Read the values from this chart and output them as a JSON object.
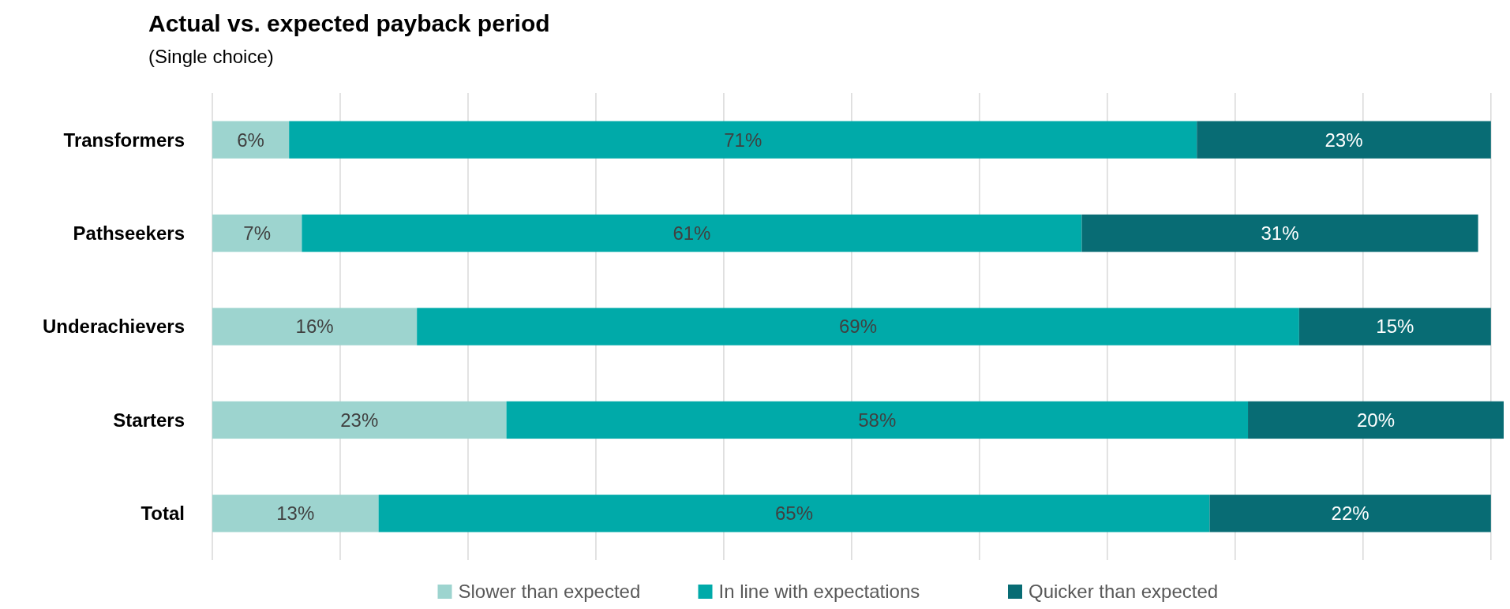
{
  "chart_data": {
    "type": "bar",
    "orientation": "horizontal",
    "stacked": true,
    "title": "Actual vs. expected payback period",
    "subtitle": "(Single choice)",
    "categories": [
      "Transformers",
      "Pathseekers",
      "Underachievers",
      "Starters",
      "Total"
    ],
    "series": [
      {
        "name": "Slower than expected",
        "color": "#9dd4cf",
        "values": [
          6,
          7,
          16,
          23,
          13
        ],
        "value_labels": [
          "6%",
          "7%",
          "16%",
          "23%",
          "13%"
        ]
      },
      {
        "name": "In line with expectations",
        "color": "#00aaa9",
        "values": [
          71,
          61,
          69,
          58,
          65
        ],
        "value_labels": [
          "71%",
          "61%",
          "69%",
          "58%",
          "65%"
        ]
      },
      {
        "name": "Quicker than expected",
        "color": "#086c74",
        "values": [
          23,
          31,
          15,
          20,
          22
        ],
        "value_labels": [
          "23%",
          "31%",
          "15%",
          "20%",
          "22%"
        ]
      }
    ],
    "tick_labels": "y",
    "grid": "x",
    "legend": "bottom"
  }
}
